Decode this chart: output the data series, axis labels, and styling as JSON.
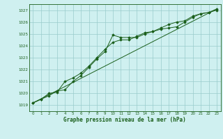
{
  "title": "Graphe pression niveau de la mer (hPa)",
  "background_color": "#cff0f0",
  "grid_color": "#99cccc",
  "line_color": "#1a5e1a",
  "marker_color": "#1a5e1a",
  "xlim": [
    -0.5,
    23.5
  ],
  "ylim": [
    1018.5,
    1027.5
  ],
  "yticks": [
    1019,
    1020,
    1021,
    1022,
    1023,
    1024,
    1025,
    1026,
    1027
  ],
  "xticks": [
    0,
    1,
    2,
    3,
    4,
    5,
    6,
    7,
    8,
    9,
    10,
    11,
    12,
    13,
    14,
    15,
    16,
    17,
    18,
    19,
    20,
    21,
    22,
    23
  ],
  "series1_x": [
    0,
    1,
    2,
    3,
    4,
    5,
    6,
    7,
    8,
    9,
    10,
    11,
    12,
    13,
    14,
    15,
    16,
    17,
    18,
    19,
    20,
    21,
    22,
    23
  ],
  "series1_y": [
    1019.2,
    1019.5,
    1019.8,
    1020.2,
    1020.3,
    1021.0,
    1021.5,
    1022.2,
    1022.9,
    1023.5,
    1024.9,
    1024.7,
    1024.7,
    1024.7,
    1025.0,
    1025.2,
    1025.4,
    1025.5,
    1025.6,
    1026.0,
    1026.4,
    1026.7,
    1026.8,
    1027.0
  ],
  "series2_x": [
    0,
    1,
    2,
    3,
    4,
    5,
    6,
    7,
    8,
    9,
    10,
    11,
    12,
    13,
    14,
    15,
    16,
    17,
    18,
    19,
    20,
    21,
    22,
    23
  ],
  "series2_y": [
    1019.2,
    1019.5,
    1020.0,
    1020.1,
    1021.0,
    1021.3,
    1021.7,
    1022.3,
    1023.0,
    1023.7,
    1024.3,
    1024.5,
    1024.5,
    1024.8,
    1025.1,
    1025.2,
    1025.5,
    1025.8,
    1026.0,
    1026.1,
    1026.5,
    1026.7,
    1026.8,
    1027.1
  ],
  "series3_x": [
    0,
    23
  ],
  "series3_y": [
    1019.2,
    1027.1
  ]
}
